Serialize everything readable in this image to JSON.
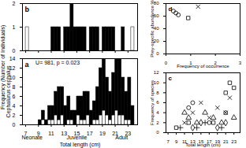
{
  "chart_data": [
    {
      "type": "histogram",
      "title": "b",
      "y_label": "Frequency (Number of Individuals)",
      "tick_labels": "y",
      "bins": [
        7,
        7.5,
        8,
        8.5,
        9,
        9.5,
        10,
        10.5,
        11,
        11.5,
        12,
        12.5,
        13,
        13.5,
        14,
        14.5,
        15,
        15.5,
        16,
        16.5,
        17,
        17.5,
        18,
        18.5,
        19,
        19.5,
        20,
        20.5,
        21,
        21.5,
        22,
        22.5,
        23,
        23.5,
        24
      ],
      "series": [
        {
          "color": "#ffffff",
          "values": [
            1,
            0,
            0,
            0,
            0,
            0,
            0,
            0,
            0,
            0,
            0,
            0,
            0,
            0,
            0,
            0,
            0,
            0,
            0,
            0,
            0,
            0,
            0,
            0,
            0,
            0,
            0,
            0,
            0,
            0,
            0,
            0,
            0,
            1
          ]
        },
        {
          "color": "#000000",
          "values": [
            0,
            0,
            0,
            0,
            0,
            0,
            0,
            0,
            1,
            1,
            1,
            0,
            1,
            1,
            2,
            1,
            1,
            1,
            1,
            0,
            1,
            1,
            1,
            0,
            1,
            1,
            1,
            1,
            0,
            0,
            1,
            0,
            0,
            0
          ]
        }
      ],
      "xlim": [
        6.5,
        24.5
      ],
      "xticks": [
        7,
        9,
        11,
        13,
        15,
        17,
        19,
        21,
        23
      ],
      "ylim": [
        0,
        2
      ],
      "yticks": [
        0,
        1,
        2
      ]
    },
    {
      "type": "histogram",
      "title": "a",
      "x_label": "Total length (cm)",
      "y_label": "Cephalurus cephalus",
      "bins": [
        7,
        7.5,
        8,
        8.5,
        9,
        9.5,
        10,
        10.5,
        11,
        11.5,
        12,
        12.5,
        13,
        13.5,
        14,
        14.5,
        15,
        15.5,
        16,
        16.5,
        17,
        17.5,
        18,
        18.5,
        19,
        19.5,
        20,
        20.5,
        21,
        21.5,
        22,
        22.5,
        23,
        23.5,
        24
      ],
      "series": [
        {
          "color": "#ffffff",
          "values": [
            0,
            0,
            0,
            0,
            0,
            1,
            0,
            1,
            1,
            2,
            1,
            2,
            0,
            1,
            1,
            0,
            2,
            1,
            1,
            2,
            0,
            1,
            1,
            2,
            3,
            2,
            1,
            2,
            3,
            2,
            2,
            1,
            1,
            0
          ]
        },
        {
          "color": "#000000",
          "values": [
            0,
            0,
            0,
            0,
            1,
            2,
            1,
            3,
            3,
            5,
            7,
            6,
            4,
            5,
            2,
            3,
            4,
            5,
            6,
            5,
            3,
            4,
            7,
            10,
            11,
            8,
            6,
            9,
            11,
            12,
            8,
            6,
            9,
            4
          ]
        }
      ],
      "xlim": [
        6.5,
        24.5
      ],
      "xticks": [
        7,
        9,
        11,
        13,
        15,
        17,
        19,
        21,
        23
      ],
      "ylim": [
        0,
        14
      ],
      "yticks": [
        0,
        2,
        4,
        6,
        8,
        10,
        12,
        14
      ],
      "annotations": [
        {
          "x": 12,
          "y": 13.2,
          "text": "U= 981, p = 0.023"
        }
      ],
      "stage_labels": [
        {
          "x": 8,
          "label": "Neonate"
        },
        {
          "x": 15,
          "label": "Juvenile"
        },
        {
          "x": 22,
          "label": "Adult"
        }
      ]
    },
    {
      "type": "scatter",
      "title": "d",
      "x_label": "Frequency of occurrence",
      "y_label": "Prey-specific abundance %",
      "series": [
        {
          "marker": "circle",
          "x": [
            0.3,
            0.4,
            0.5
          ],
          "values": [
            68,
            65,
            62
          ]
        },
        {
          "marker": "times",
          "x": [
            1.3
          ],
          "values": [
            75
          ]
        },
        {
          "marker": "square",
          "x": [
            0.9
          ],
          "values": [
            57
          ]
        }
      ],
      "xlim": [
        0,
        3
      ],
      "xticks": [
        0,
        1,
        2,
        3
      ],
      "ylim": [
        0,
        80
      ],
      "yticks": [
        0,
        20,
        40,
        60,
        80
      ]
    },
    {
      "type": "scatter",
      "title": "c",
      "x_label": "Total length (cm)",
      "y_label": "Frequency of species",
      "series": [
        {
          "marker": "circle",
          "x": [
            12,
            13,
            17,
            21
          ],
          "values": [
            5,
            6,
            2,
            4
          ]
        },
        {
          "marker": "times",
          "x": [
            11,
            13,
            15,
            17,
            19,
            21,
            22
          ],
          "values": [
            2,
            4,
            6,
            3,
            5,
            4,
            7
          ]
        },
        {
          "marker": "triangle",
          "x": [
            11,
            12,
            14,
            16,
            18,
            20,
            23
          ],
          "values": [
            4,
            3,
            2,
            4,
            3,
            2,
            3
          ]
        },
        {
          "marker": "square",
          "x": [
            9,
            12,
            18,
            21,
            22,
            23
          ],
          "values": [
            1,
            2,
            2,
            8,
            10,
            9
          ]
        },
        {
          "marker": "diamond",
          "x": [
            13,
            15,
            19,
            21
          ],
          "values": [
            1,
            2,
            1,
            2
          ]
        },
        {
          "marker": "plus",
          "x": [
            10,
            14,
            16,
            20
          ],
          "values": [
            1,
            1,
            2,
            1
          ]
        }
      ],
      "xlim": [
        6.5,
        24.5
      ],
      "xticks": [
        7,
        9,
        11,
        13,
        15,
        17,
        19,
        21,
        23
      ],
      "ylim": [
        0,
        12
      ],
      "yticks": [
        0,
        2,
        4,
        6,
        8,
        10,
        12
      ]
    }
  ]
}
